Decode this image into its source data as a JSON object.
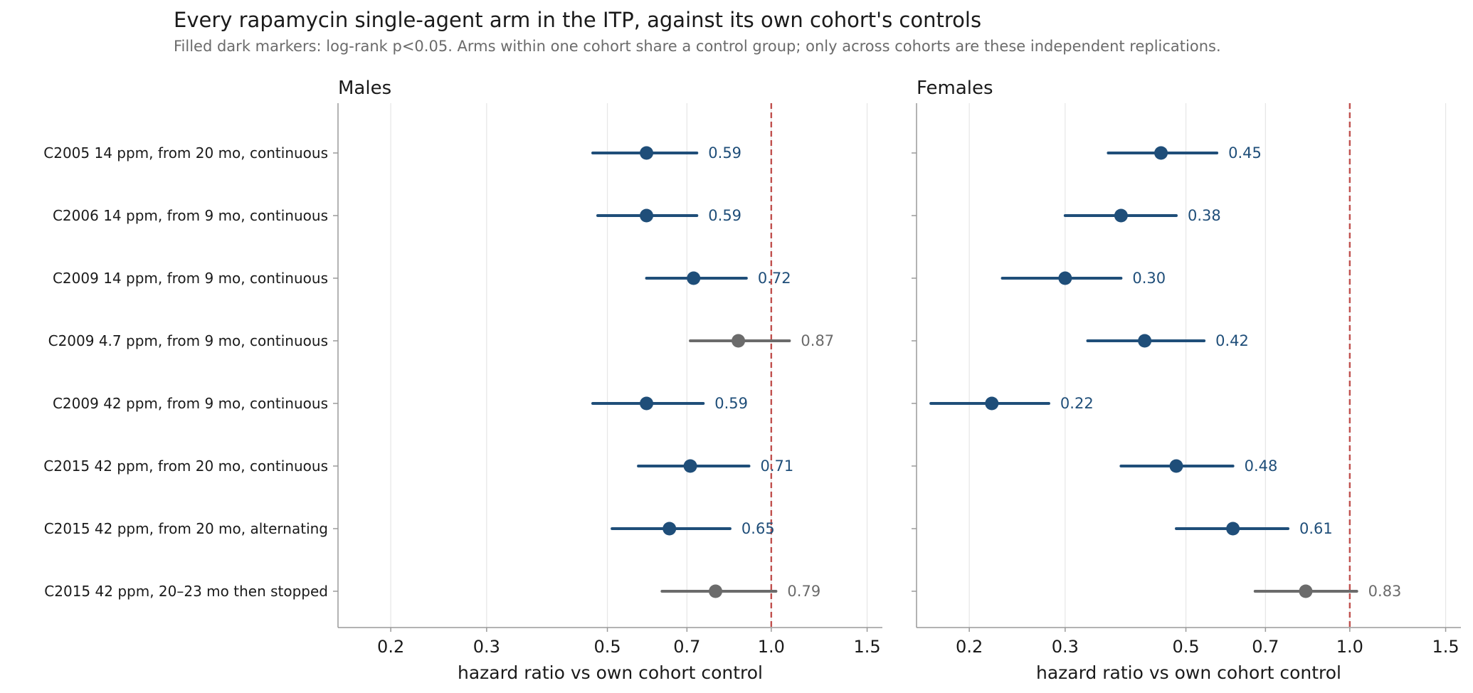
{
  "title": "Every rapamycin single-agent arm in the ITP, against its own cohort's controls",
  "subtitle": "Filled dark markers: log-rank p<0.05. Arms within one cohort share a control group; only across cohorts are these independent replications.",
  "colors": {
    "significant": "#1f4e79",
    "not_significant": "#6b6b6b",
    "reference_line": "#c0504d",
    "grid": "#e6e6e6",
    "axis": "#9a9a9a"
  },
  "chart_data": {
    "type": "forest",
    "arms": [
      "C2005  14 ppm, from 20 mo, continuous",
      "C2006  14 ppm, from 9 mo, continuous",
      "C2009  14 ppm, from 9 mo, continuous",
      "C2009  4.7 ppm, from 9 mo, continuous",
      "C2009  42 ppm, from 9 mo, continuous",
      "C2015  42 ppm, from 20 mo, continuous",
      "C2015  42 ppm, from 20 mo, alternating",
      "C2015  42 ppm, 20–23 mo then stopped"
    ],
    "x_scale": "log",
    "xlim": [
      0.16,
      1.6
    ],
    "xticks": [
      0.2,
      0.3,
      0.5,
      0.7,
      1.0,
      1.5
    ],
    "xtick_labels": [
      "0.2",
      "0.3",
      "0.5",
      "0.7",
      "1.0",
      "1.5"
    ],
    "xlabel": "hazard ratio vs own cohort control",
    "reference_line": 1.0,
    "grid": "vertical",
    "panels": [
      {
        "title": "Males",
        "hr": [
          0.59,
          0.59,
          0.72,
          0.87,
          0.59,
          0.71,
          0.65,
          0.79
        ],
        "ci_low": [
          0.47,
          0.48,
          0.59,
          0.71,
          0.47,
          0.57,
          0.51,
          0.63
        ],
        "ci_high": [
          0.73,
          0.73,
          0.9,
          1.08,
          0.75,
          0.91,
          0.84,
          1.02
        ],
        "significant": [
          true,
          true,
          true,
          false,
          true,
          true,
          true,
          false
        ],
        "labels": [
          "0.59",
          "0.59",
          "0.72",
          "0.87",
          "0.59",
          "0.71",
          "0.65",
          "0.79"
        ]
      },
      {
        "title": "Females",
        "hr": [
          0.45,
          0.38,
          0.3,
          0.42,
          0.22,
          0.48,
          0.61,
          0.83
        ],
        "ci_low": [
          0.36,
          0.3,
          0.23,
          0.33,
          0.17,
          0.38,
          0.48,
          0.67
        ],
        "ci_high": [
          0.57,
          0.48,
          0.38,
          0.54,
          0.28,
          0.61,
          0.77,
          1.03
        ],
        "significant": [
          true,
          true,
          true,
          true,
          true,
          true,
          true,
          false
        ],
        "labels": [
          "0.45",
          "0.38",
          "0.30",
          "0.42",
          "0.22",
          "0.48",
          "0.61",
          "0.83"
        ]
      }
    ]
  }
}
